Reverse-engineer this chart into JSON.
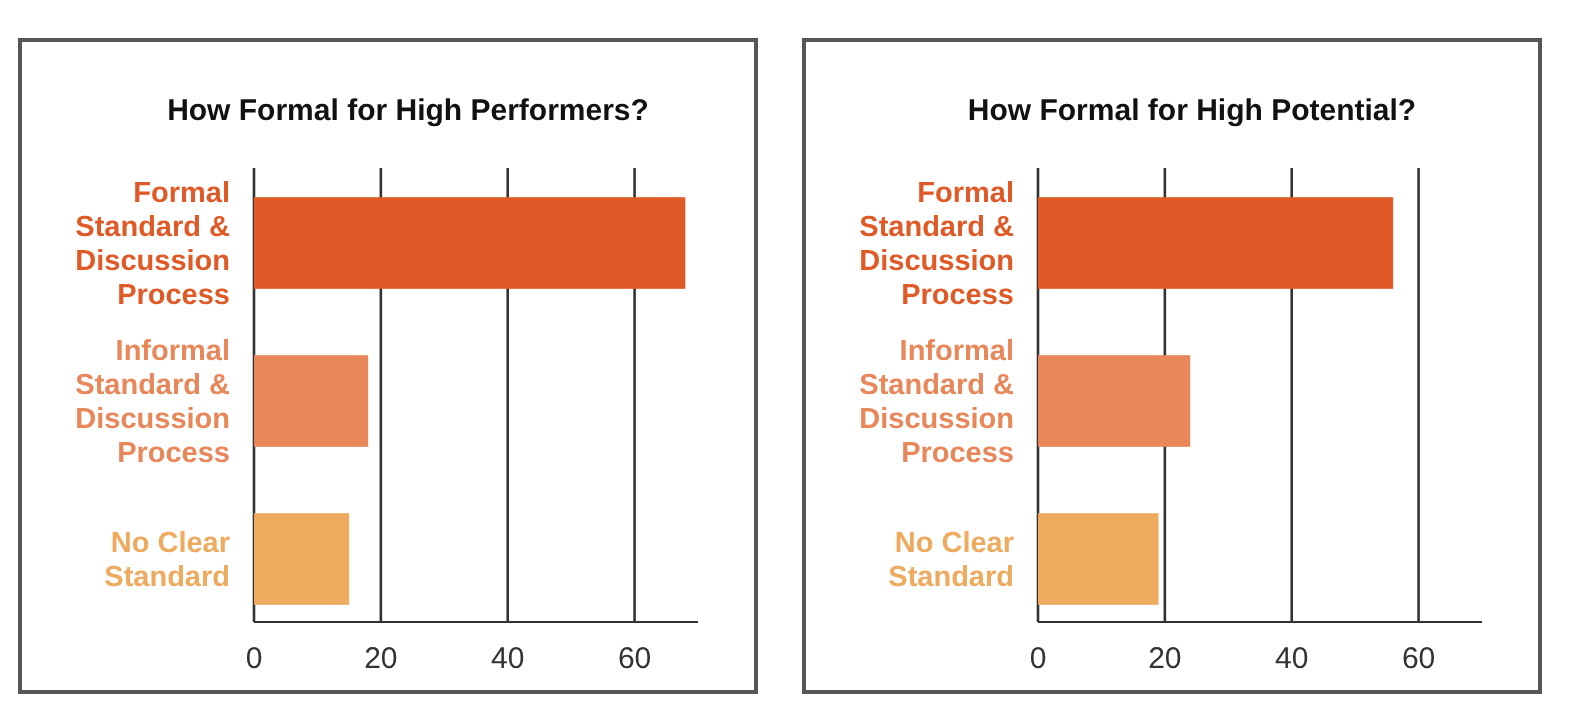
{
  "chart_data": [
    {
      "type": "bar",
      "orientation": "horizontal",
      "title": "How Formal for High Performers?",
      "categories": [
        "Formal Standard & Discussion Process",
        "Informal Standard & Discussion Process",
        "No Clear Standard"
      ],
      "values": [
        68,
        18,
        15
      ],
      "colors": [
        "#e05a28",
        "#e8875a",
        "#eeaa5f"
      ],
      "xlim": [
        0,
        70
      ],
      "xticks": [
        0,
        20,
        40,
        60
      ],
      "grid": "x"
    },
    {
      "type": "bar",
      "orientation": "horizontal",
      "title": "How Formal for High Potential?",
      "categories": [
        "Formal Standard & Discussion Process",
        "Informal Standard & Discussion Process",
        "No Clear Standard"
      ],
      "values": [
        56,
        24,
        19
      ],
      "colors": [
        "#e05a28",
        "#e8875a",
        "#eeaa5f"
      ],
      "xlim": [
        0,
        70
      ],
      "xticks": [
        0,
        20,
        40,
        60
      ],
      "grid": "x"
    }
  ]
}
